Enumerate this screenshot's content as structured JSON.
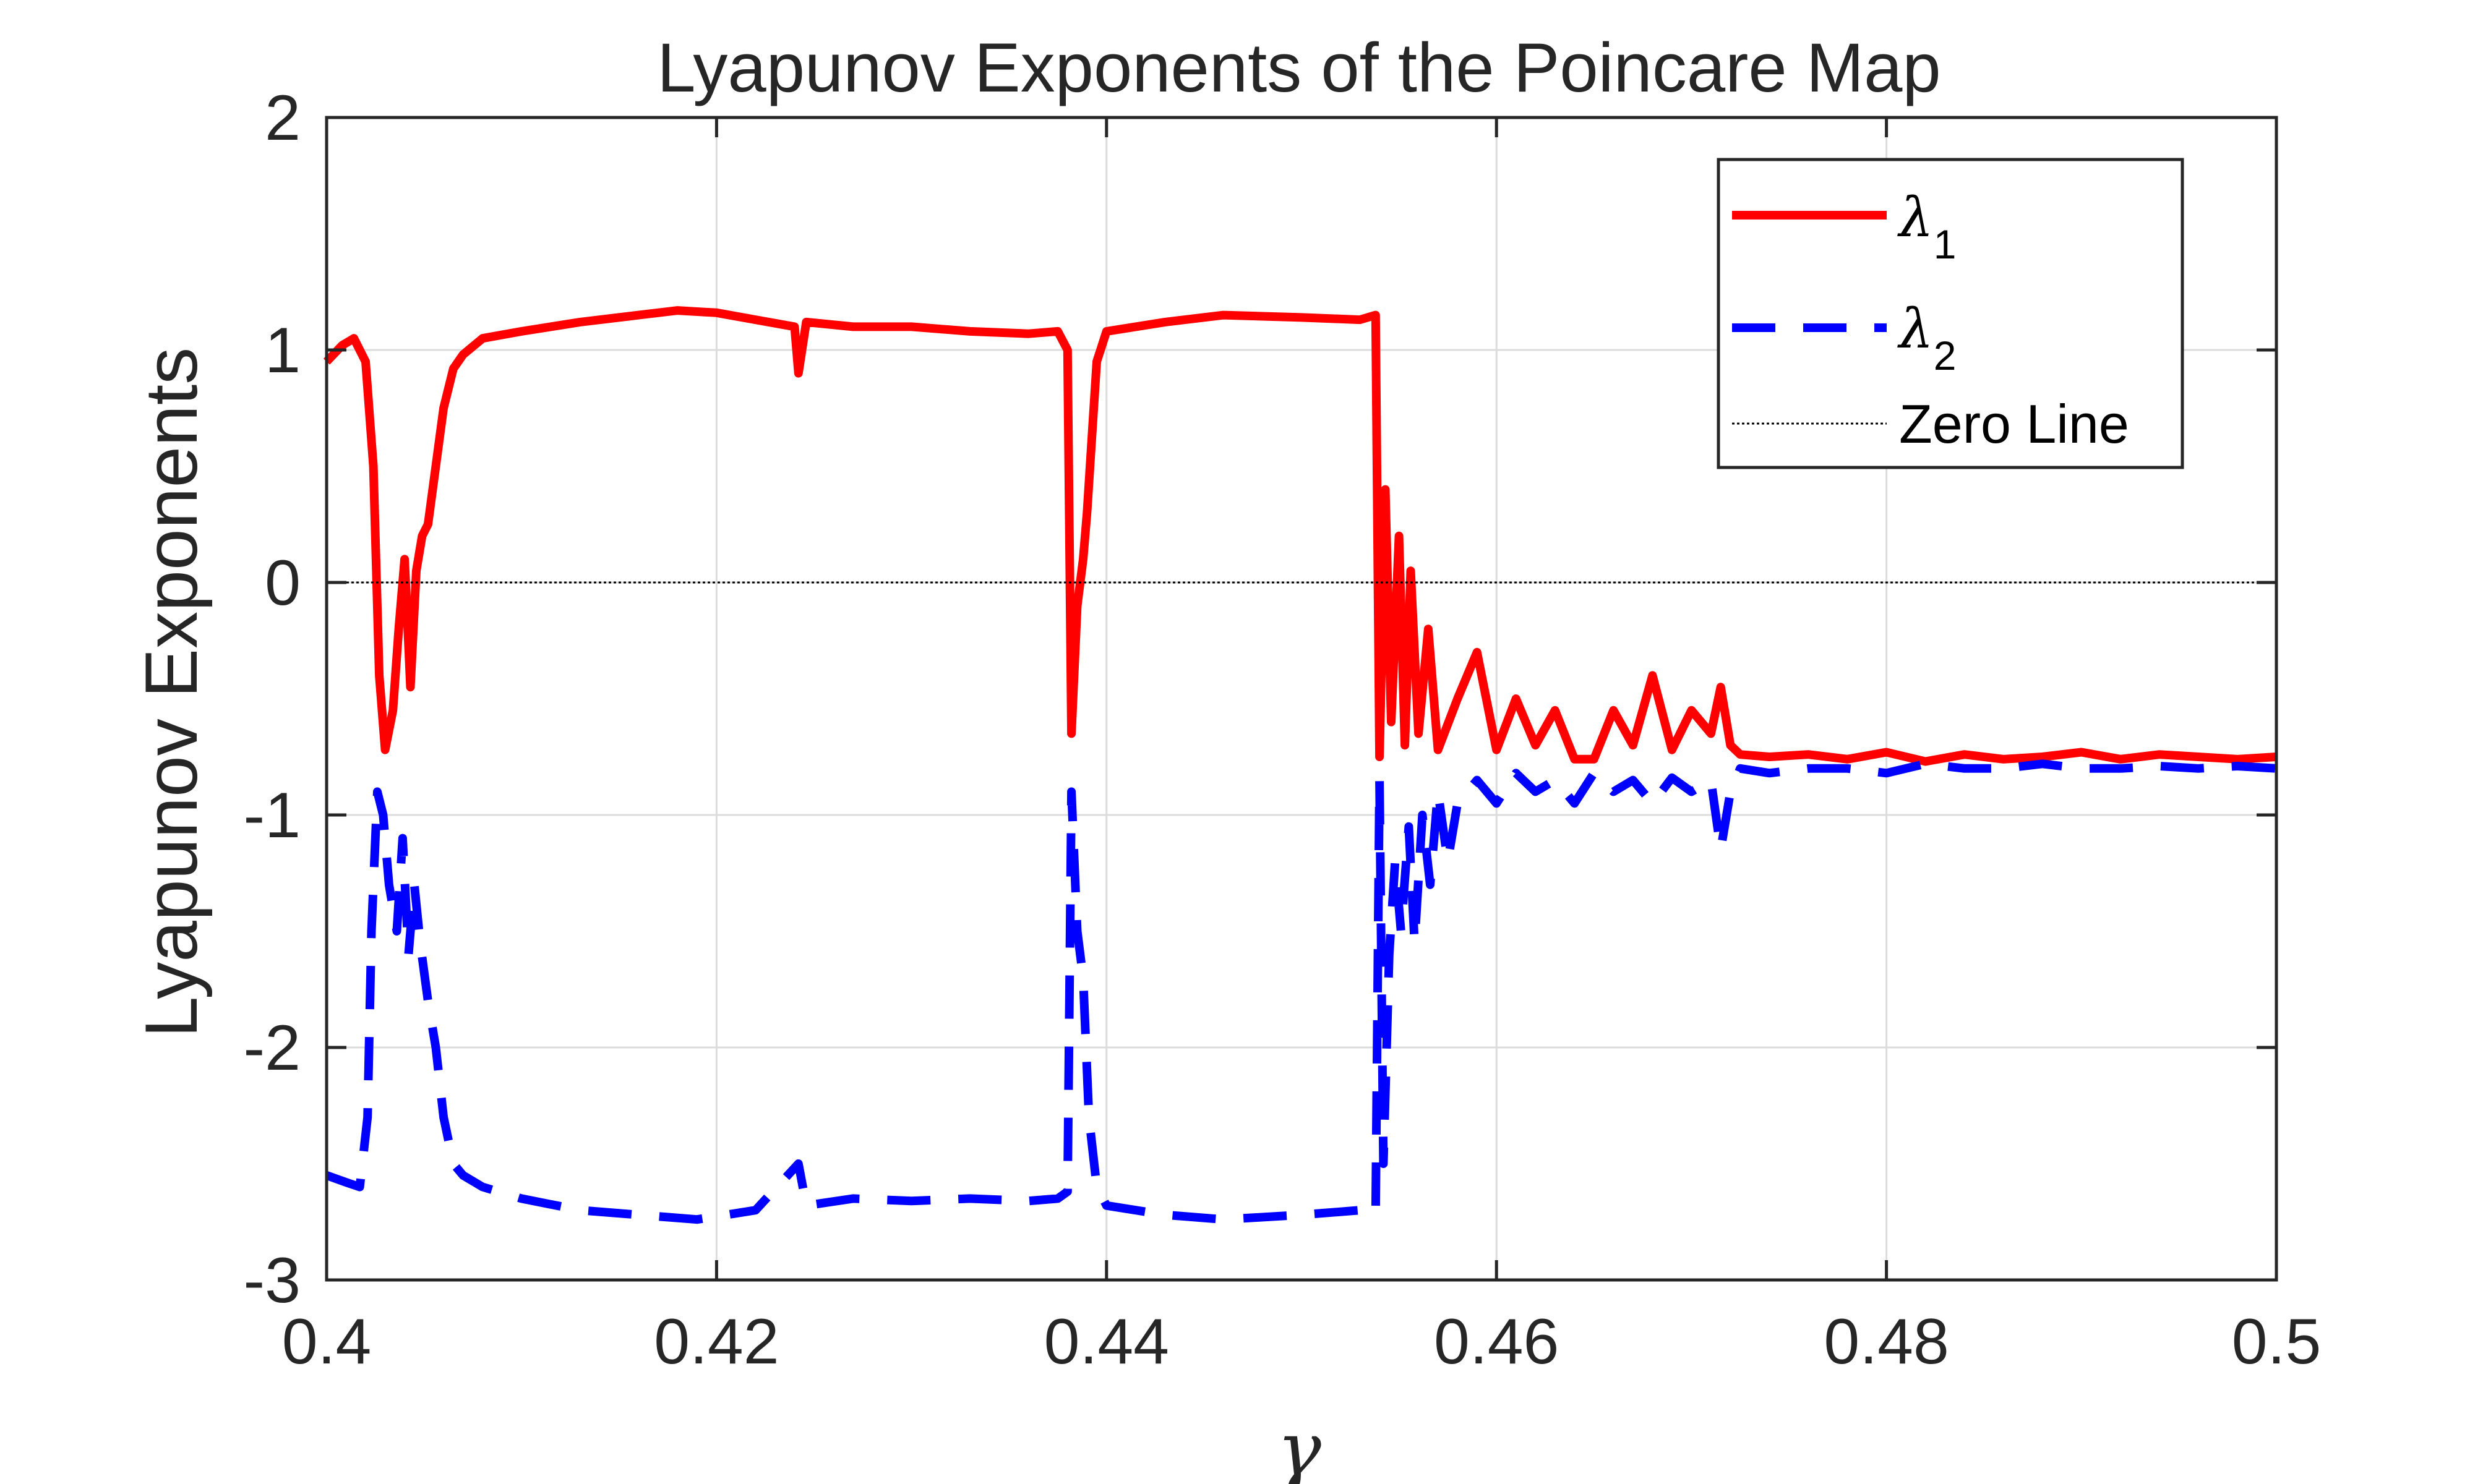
{
  "chart_data": {
    "type": "line",
    "title": "Lyapunov Exponents of the Poincare Map",
    "xlabel": "γ",
    "ylabel": "Lyapunov Exponents",
    "xlim": [
      0.4,
      0.5
    ],
    "ylim": [
      -3,
      2
    ],
    "xticks": [
      0.4,
      0.42,
      0.44,
      0.46,
      0.48,
      0.5
    ],
    "xtick_labels": [
      "0.4",
      "0.42",
      "0.44",
      "0.46",
      "0.48",
      "0.5"
    ],
    "yticks": [
      -3,
      -2,
      -1,
      0,
      1,
      2
    ],
    "ytick_labels": [
      "-3",
      "-2",
      "-1",
      "0",
      "1",
      "2"
    ],
    "grid": true,
    "legend_position": "top-right",
    "legend": [
      {
        "symbol": "λ",
        "subscript": "1"
      },
      {
        "symbol": "λ",
        "subscript": "2"
      },
      {
        "text": "Zero Line"
      }
    ],
    "series": [
      {
        "name": "λ1",
        "color": "#ff0000",
        "style": "solid",
        "x": [
          0.4,
          0.4008,
          0.4014,
          0.402,
          0.4024,
          0.4027,
          0.403,
          0.4034,
          0.4037,
          0.404,
          0.4043,
          0.4046,
          0.4049,
          0.4052,
          0.4056,
          0.406,
          0.4065,
          0.407,
          0.408,
          0.41,
          0.413,
          0.416,
          0.418,
          0.42,
          0.422,
          0.424,
          0.4242,
          0.4246,
          0.427,
          0.43,
          0.433,
          0.436,
          0.4375,
          0.438,
          0.4382,
          0.4385,
          0.4388,
          0.439,
          0.4395,
          0.44,
          0.443,
          0.446,
          0.45,
          0.453,
          0.4538,
          0.454,
          0.4543,
          0.4546,
          0.455,
          0.4553,
          0.4556,
          0.456,
          0.4565,
          0.457,
          0.458,
          0.459,
          0.46,
          0.461,
          0.462,
          0.463,
          0.464,
          0.465,
          0.466,
          0.467,
          0.468,
          0.469,
          0.47,
          0.471,
          0.4715,
          0.472,
          0.4725,
          0.474,
          0.476,
          0.478,
          0.48,
          0.482,
          0.484,
          0.486,
          0.488,
          0.49,
          0.492,
          0.494,
          0.496,
          0.498,
          0.5
        ],
        "y": [
          0.95,
          1.02,
          1.05,
          0.95,
          0.5,
          -0.4,
          -0.72,
          -0.55,
          -0.2,
          0.1,
          -0.45,
          0.05,
          0.2,
          0.25,
          0.5,
          0.75,
          0.92,
          0.98,
          1.05,
          1.08,
          1.12,
          1.15,
          1.17,
          1.16,
          1.13,
          1.1,
          0.9,
          1.12,
          1.1,
          1.1,
          1.08,
          1.07,
          1.08,
          1.0,
          -0.65,
          -0.1,
          0.1,
          0.3,
          0.95,
          1.08,
          1.12,
          1.15,
          1.14,
          1.13,
          1.15,
          -0.75,
          0.4,
          -0.6,
          0.2,
          -0.7,
          0.05,
          -0.65,
          -0.2,
          -0.72,
          -0.5,
          -0.3,
          -0.72,
          -0.5,
          -0.7,
          -0.55,
          -0.76,
          -0.76,
          -0.55,
          -0.7,
          -0.4,
          -0.72,
          -0.55,
          -0.65,
          -0.45,
          -0.7,
          -0.74,
          -0.75,
          -0.74,
          -0.76,
          -0.73,
          -0.77,
          -0.74,
          -0.76,
          -0.75,
          -0.73,
          -0.76,
          -0.74,
          -0.75,
          -0.76,
          -0.75
        ]
      },
      {
        "name": "λ2",
        "color": "#0000ff",
        "style": "dashed",
        "x": [
          0.4,
          0.401,
          0.4017,
          0.4021,
          0.4023,
          0.4026,
          0.4029,
          0.4032,
          0.4036,
          0.4039,
          0.4042,
          0.4045,
          0.4048,
          0.4052,
          0.4056,
          0.406,
          0.4065,
          0.407,
          0.408,
          0.41,
          0.413,
          0.416,
          0.419,
          0.422,
          0.4242,
          0.4246,
          0.427,
          0.43,
          0.433,
          0.436,
          0.4375,
          0.438,
          0.4382,
          0.4385,
          0.4388,
          0.4391,
          0.4395,
          0.44,
          0.443,
          0.446,
          0.45,
          0.453,
          0.4538,
          0.454,
          0.4542,
          0.4545,
          0.4548,
          0.4551,
          0.4555,
          0.4558,
          0.4562,
          0.4566,
          0.457,
          0.4575,
          0.458,
          0.459,
          0.46,
          0.461,
          0.462,
          0.463,
          0.464,
          0.465,
          0.466,
          0.467,
          0.468,
          0.469,
          0.47,
          0.471,
          0.4715,
          0.472,
          0.4725,
          0.474,
          0.476,
          0.478,
          0.48,
          0.482,
          0.484,
          0.486,
          0.488,
          0.49,
          0.492,
          0.494,
          0.496,
          0.498,
          0.5
        ],
        "y": [
          -2.55,
          -2.58,
          -2.6,
          -2.3,
          -1.5,
          -0.9,
          -1.0,
          -1.3,
          -1.5,
          -1.1,
          -1.6,
          -1.3,
          -1.55,
          -1.8,
          -2.0,
          -2.3,
          -2.5,
          -2.55,
          -2.6,
          -2.65,
          -2.7,
          -2.72,
          -2.74,
          -2.7,
          -2.5,
          -2.68,
          -2.65,
          -2.66,
          -2.65,
          -2.66,
          -2.65,
          -2.62,
          -0.9,
          -1.5,
          -1.7,
          -2.3,
          -2.6,
          -2.68,
          -2.72,
          -2.74,
          -2.72,
          -2.7,
          -2.72,
          -0.85,
          -2.5,
          -1.6,
          -1.2,
          -1.5,
          -1.05,
          -1.55,
          -1.0,
          -1.3,
          -0.9,
          -1.2,
          -0.95,
          -0.85,
          -0.95,
          -0.82,
          -0.9,
          -0.85,
          -0.95,
          -0.82,
          -0.9,
          -0.85,
          -0.95,
          -0.84,
          -0.9,
          -0.85,
          -1.15,
          -0.9,
          -0.8,
          -0.82,
          -0.8,
          -0.8,
          -0.82,
          -0.78,
          -0.8,
          -0.8,
          -0.78,
          -0.8,
          -0.8,
          -0.79,
          -0.8,
          -0.79,
          -0.8
        ]
      },
      {
        "name": "Zero Line",
        "color": "#000000",
        "style": "dotted",
        "x": [
          0.4,
          0.5
        ],
        "y": [
          0,
          0
        ]
      }
    ]
  },
  "colors": {
    "background": "#ffffff",
    "axes": "#262626",
    "grid": "#dcdcdc",
    "lambda1": "#ff0000",
    "lambda2": "#0000ff",
    "zero_line": "#000000"
  }
}
